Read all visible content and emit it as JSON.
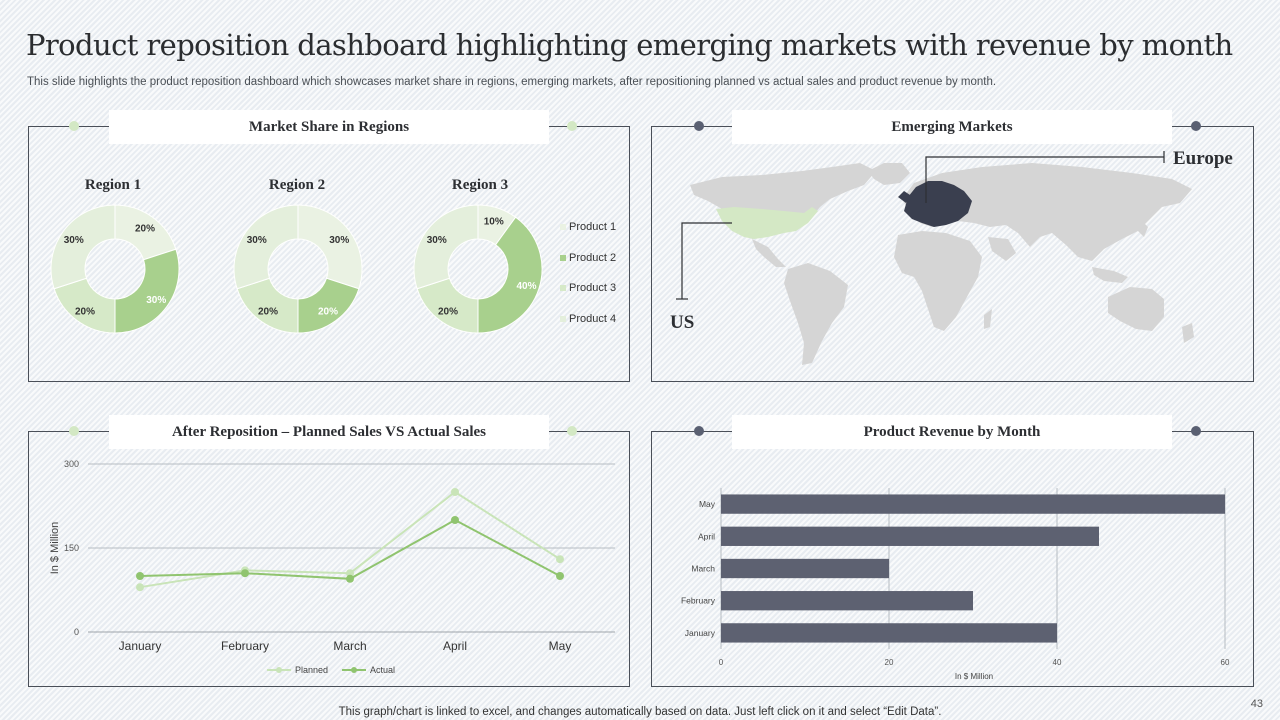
{
  "title": "Product reposition dashboard highlighting emerging markets with revenue by month",
  "subtitle": "This slide highlights the product reposition dashboard which showcases market share in regions, emerging markets, after repositioning planned vs actual sales and product revenue by month.",
  "panels": {
    "market_share": "Market Share in Regions",
    "emerging": "Emerging Markets",
    "planned_actual": "After Reposition – Planned Sales VS Actual Sales",
    "revenue": "Product Revenue by Month"
  },
  "map": {
    "europe_label": "Europe",
    "us_label": "US"
  },
  "colors": {
    "p1": "#eaf2e3",
    "p2": "#a8d08d",
    "p3": "#d6e9c8",
    "p4": "#e4efdc",
    "bar": "#5d6171",
    "planned": "#c9e4b8",
    "actual": "#90c46f",
    "europe": "#3a3f4f",
    "us": "#d4e8c5",
    "land": "#d5d5d5"
  },
  "chart_data": [
    {
      "type": "pie",
      "variant": "donut",
      "title": "Region 1",
      "categories": [
        "Product 1",
        "Product 2",
        "Product 3",
        "Product 4"
      ],
      "values": [
        20,
        30,
        20,
        30
      ],
      "labels": [
        "20%",
        "30%",
        "20%",
        "30%"
      ]
    },
    {
      "type": "pie",
      "variant": "donut",
      "title": "Region 2",
      "categories": [
        "Product 1",
        "Product 2",
        "Product 3",
        "Product 4"
      ],
      "values": [
        30,
        20,
        20,
        30
      ],
      "labels": [
        "30%",
        "20%",
        "20%",
        "30%"
      ]
    },
    {
      "type": "pie",
      "variant": "donut",
      "title": "Region 3",
      "categories": [
        "Product 1",
        "Product 2",
        "Product 3",
        "Product 4"
      ],
      "values": [
        10,
        40,
        20,
        30
      ],
      "labels": [
        "10%",
        "40%",
        "20%",
        "30%"
      ]
    },
    {
      "type": "line",
      "title": "After Reposition – Planned Sales VS Actual Sales",
      "categories": [
        "January",
        "February",
        "March",
        "April",
        "May"
      ],
      "series": [
        {
          "name": "Planned",
          "values": [
            80,
            110,
            105,
            250,
            130
          ]
        },
        {
          "name": "Actual",
          "values": [
            100,
            105,
            95,
            200,
            100
          ]
        }
      ],
      "ylabel": "In $ Million",
      "yticks": [
        "0",
        "150",
        "300"
      ],
      "ylim": [
        0,
        300
      ],
      "grid": true,
      "legend": "bottom"
    },
    {
      "type": "bar",
      "orientation": "horizontal",
      "title": "Product Revenue by Month",
      "categories": [
        "January",
        "February",
        "March",
        "April",
        "May"
      ],
      "values": [
        40,
        30,
        20,
        45,
        60
      ],
      "xlabel": "In $ Million",
      "xticks": [
        "0",
        "20",
        "40",
        "60"
      ],
      "xlim": [
        0,
        60
      ],
      "grid": true
    }
  ],
  "footer": "This graph/chart is linked to excel,  and changes automatically based on data. Just left click on it and select “Edit Data”.",
  "page_number": "43"
}
